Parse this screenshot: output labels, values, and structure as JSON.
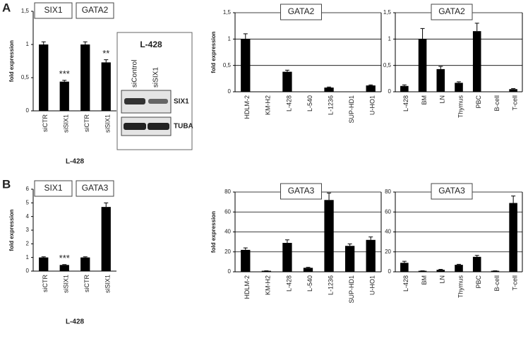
{
  "panels": [
    "A",
    "B"
  ],
  "blot": {
    "title": "L-428",
    "lanes": [
      "siControl",
      "siSIX1"
    ],
    "rows": [
      "SIX1",
      "TUBA"
    ]
  },
  "chart_data": [
    {
      "type": "bar",
      "titles": [
        "SIX1",
        "GATA2"
      ],
      "ylabel": "fold expression",
      "xlabel": "L-428",
      "color": "#000000",
      "grid": false,
      "categories": [
        "siCTR",
        "siSIX1",
        "siCTR",
        "siSIX1"
      ],
      "values": [
        1.0,
        0.44,
        1.0,
        0.73
      ],
      "errors": [
        0.04,
        0.02,
        0.04,
        0.04
      ],
      "annotations": [
        null,
        "***",
        null,
        "**"
      ],
      "ylim": [
        0,
        1.5
      ],
      "yticks": [
        0,
        {
          "value": 0.5,
          "label": "0,5"
        },
        1,
        {
          "value": 1.5,
          "label": "1,5"
        }
      ]
    },
    {
      "type": "bar",
      "title": "GATA2",
      "ylabel": "fold expression",
      "color": "#000000",
      "grid": true,
      "categories": [
        "HDLM-2",
        "KM-H2",
        "L-428",
        "L-540",
        "L-1236",
        "SUP-HD1",
        "U-HO1"
      ],
      "values": [
        1.0,
        0,
        0.38,
        0,
        0.08,
        0,
        0.12
      ],
      "errors": [
        0.1,
        0,
        0.03,
        0,
        0.01,
        0,
        0.01
      ],
      "ylim": [
        0,
        1.5
      ],
      "yticks": [
        0,
        {
          "value": 0.5,
          "label": "0,5"
        },
        1,
        {
          "value": 1.5,
          "label": "1,5"
        }
      ]
    },
    {
      "type": "bar",
      "title": "GATA2",
      "color": "#000000",
      "grid": true,
      "categories": [
        "L-428",
        "BM",
        "LN",
        "Thymus",
        "PBC",
        "B-cell",
        "T-cell"
      ],
      "values": [
        0.11,
        1.0,
        0.43,
        0.17,
        1.15,
        0,
        0.05
      ],
      "errors": [
        0.02,
        0.2,
        0.05,
        0.02,
        0.15,
        0,
        0.01
      ],
      "ylim": [
        0,
        1.5
      ],
      "yticks": [
        0,
        {
          "value": 0.5,
          "label": "0,5"
        },
        1,
        {
          "value": 1.5,
          "label": "1,5"
        }
      ]
    },
    {
      "type": "bar",
      "titles": [
        "SIX1",
        "GATA3"
      ],
      "ylabel": "fold expression",
      "xlabel": "L-428",
      "color": "#000000",
      "grid": false,
      "categories": [
        "siCTR",
        "siSIX1",
        "siCTR",
        "siSIX1"
      ],
      "values": [
        1.0,
        0.45,
        1.0,
        4.7
      ],
      "errors": [
        0.05,
        0.03,
        0.05,
        0.3
      ],
      "annotations": [
        null,
        "***",
        null,
        "***"
      ],
      "ylim": [
        0,
        6
      ],
      "yticks": [
        0,
        1,
        2,
        3,
        4,
        5,
        6
      ]
    },
    {
      "type": "bar",
      "title": "GATA3",
      "ylabel": "fold expression",
      "color": "#000000",
      "grid": true,
      "categories": [
        "HDLM-2",
        "KM-H2",
        "L-428",
        "L-540",
        "L-1236",
        "SUP-HD1",
        "U-HO1"
      ],
      "values": [
        22,
        1,
        29,
        4,
        72,
        26,
        32
      ],
      "errors": [
        2,
        0,
        3,
        0.5,
        7,
        2,
        3
      ],
      "ylim": [
        0,
        80
      ],
      "yticks": [
        0,
        20,
        40,
        60,
        80
      ]
    },
    {
      "type": "bar",
      "title": "GATA3",
      "color": "#000000",
      "grid": true,
      "categories": [
        "L-428",
        "BM",
        "LN",
        "Thymus",
        "PBC",
        "B-cell",
        "T-cell"
      ],
      "values": [
        9,
        1,
        2,
        7,
        15,
        1,
        69
      ],
      "errors": [
        1.5,
        0,
        0.5,
        0.5,
        1.5,
        0,
        7
      ],
      "ylim": [
        0,
        80
      ],
      "yticks": [
        0,
        20,
        40,
        60,
        80
      ]
    }
  ]
}
